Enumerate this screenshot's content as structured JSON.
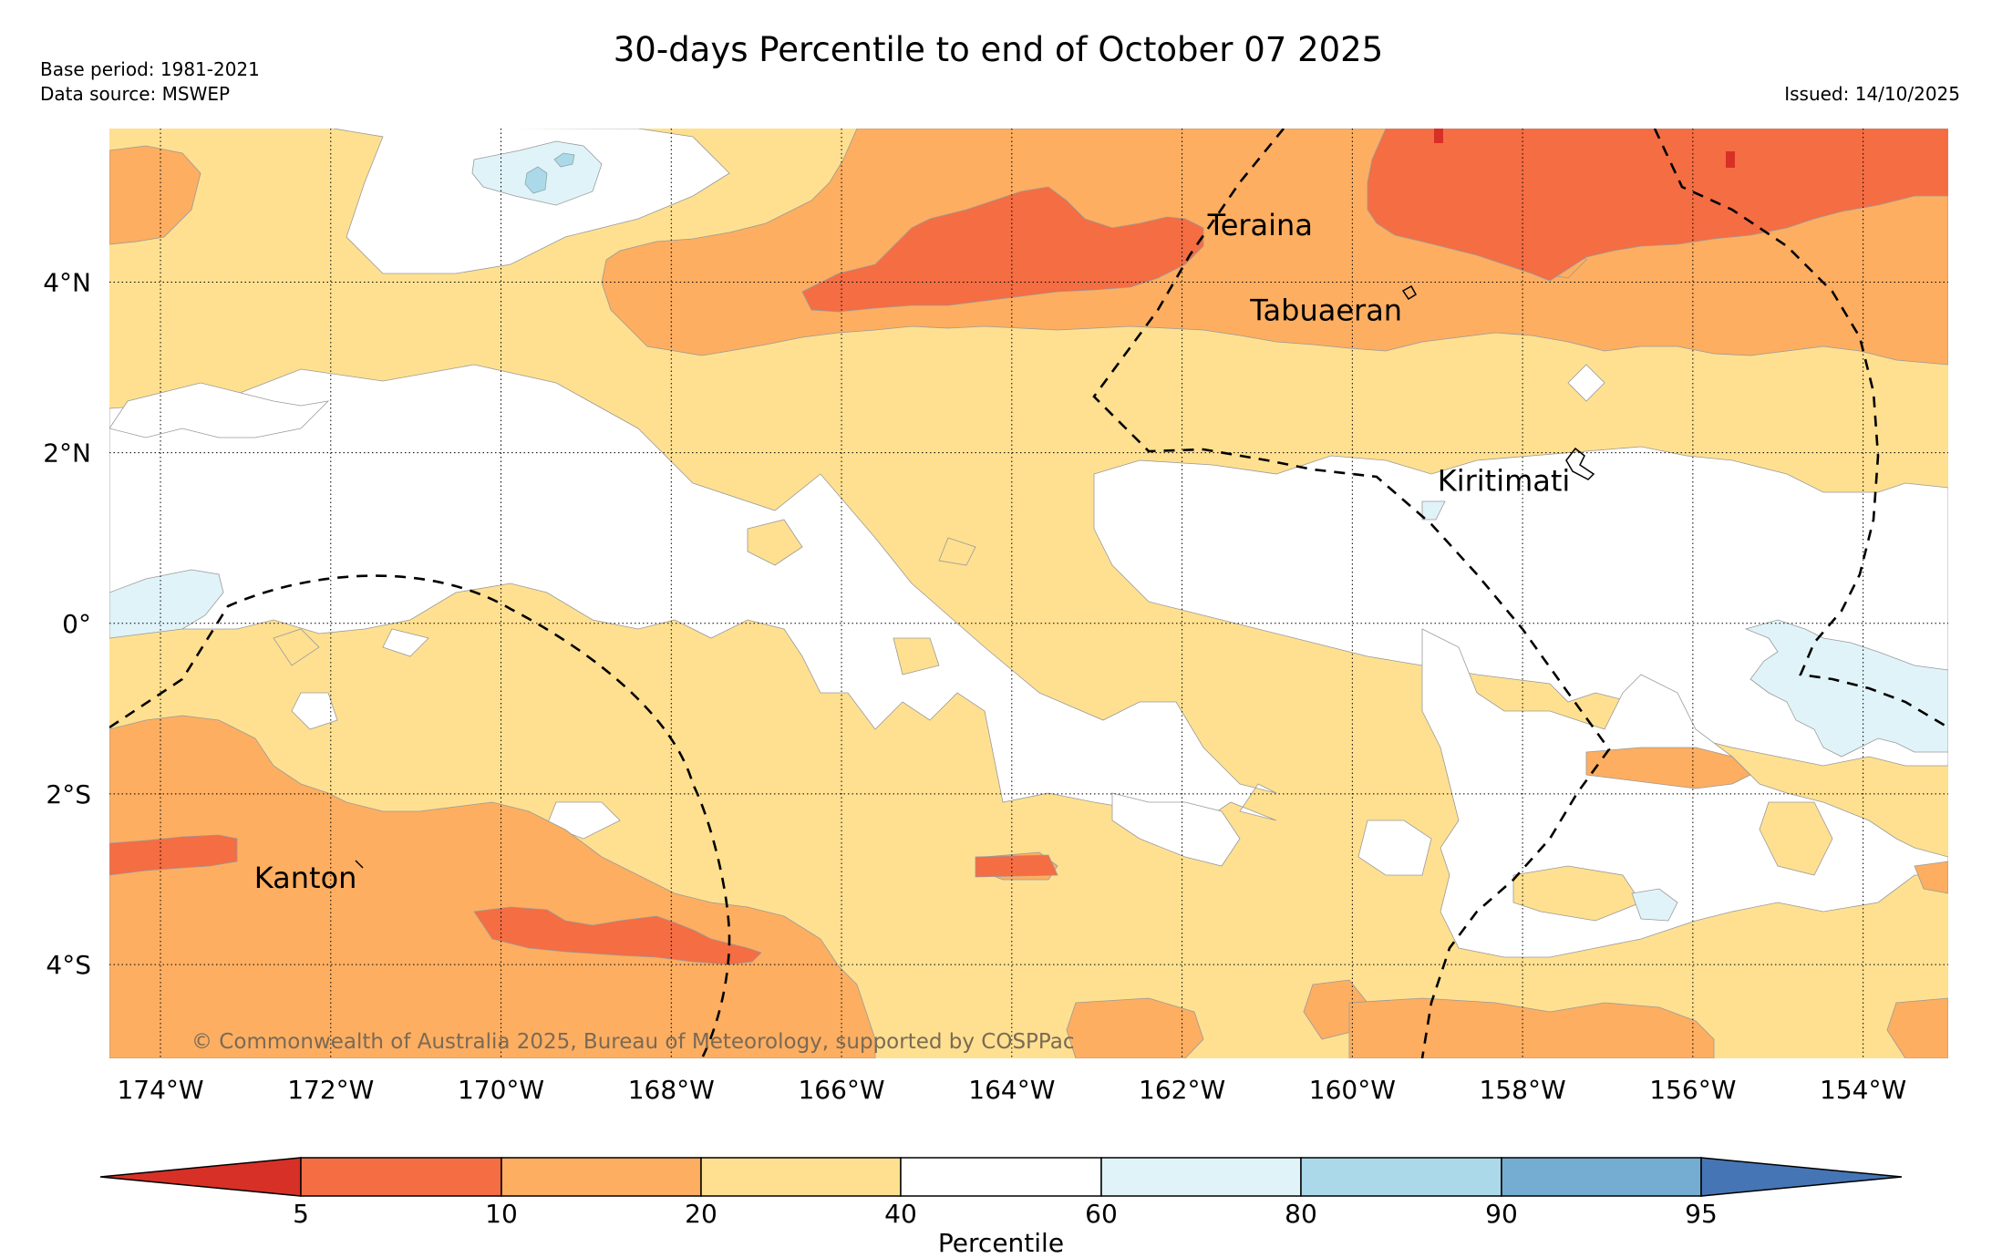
{
  "title": "30-days Percentile to end of October 07 2025",
  "meta": {
    "base_period": "Base period: 1981-2021",
    "data_source": "Data source: MSWEP",
    "issued": "Issued: 14/10/2025"
  },
  "map": {
    "lon_min": -174.6,
    "lon_max": -153.0,
    "lat_min": -5.1,
    "lat_max": 5.8,
    "x_ticks": [
      {
        "lon": -174,
        "label": "174°W"
      },
      {
        "lon": -172,
        "label": "172°W"
      },
      {
        "lon": -170,
        "label": "170°W"
      },
      {
        "lon": -168,
        "label": "168°W"
      },
      {
        "lon": -166,
        "label": "166°W"
      },
      {
        "lon": -164,
        "label": "164°W"
      },
      {
        "lon": -162,
        "label": "162°W"
      },
      {
        "lon": -160,
        "label": "160°W"
      },
      {
        "lon": -158,
        "label": "158°W"
      },
      {
        "lon": -156,
        "label": "156°W"
      },
      {
        "lon": -154,
        "label": "154°W"
      }
    ],
    "y_ticks": [
      {
        "lat": 4,
        "label": "4°N"
      },
      {
        "lat": 2,
        "label": "2°N"
      },
      {
        "lat": 0,
        "label": "0°"
      },
      {
        "lat": -2,
        "label": "2°S"
      },
      {
        "lat": -4,
        "label": "4°S"
      }
    ],
    "places": [
      {
        "name": "Teraina",
        "lon": -161.7,
        "lat": 4.55
      },
      {
        "name": "Tabuaeran",
        "lon": -161.2,
        "lat": 3.55
      },
      {
        "name": "Kiritimati",
        "lon": -159.0,
        "lat": 1.55
      },
      {
        "name": "Kanton",
        "lon": -172.9,
        "lat": -3.1
      }
    ],
    "copyright": "© Commonwealth of Australia 2025, Bureau of Meteorology, supported by COSPPac"
  },
  "colorbar": {
    "label": "Percentile",
    "ticks": [
      "5",
      "10",
      "20",
      "40",
      "60",
      "80",
      "90",
      "95"
    ],
    "colors": {
      "below5": "#d73027",
      "p5_10": "#f46d43",
      "p10_20": "#fdae61",
      "p20_40": "#fee090",
      "p40_60": "#ffffff",
      "p60_80": "#e0f3f8",
      "p80_90": "#abd9e9",
      "p90_95": "#74add1",
      "above95": "#4575b4"
    }
  }
}
